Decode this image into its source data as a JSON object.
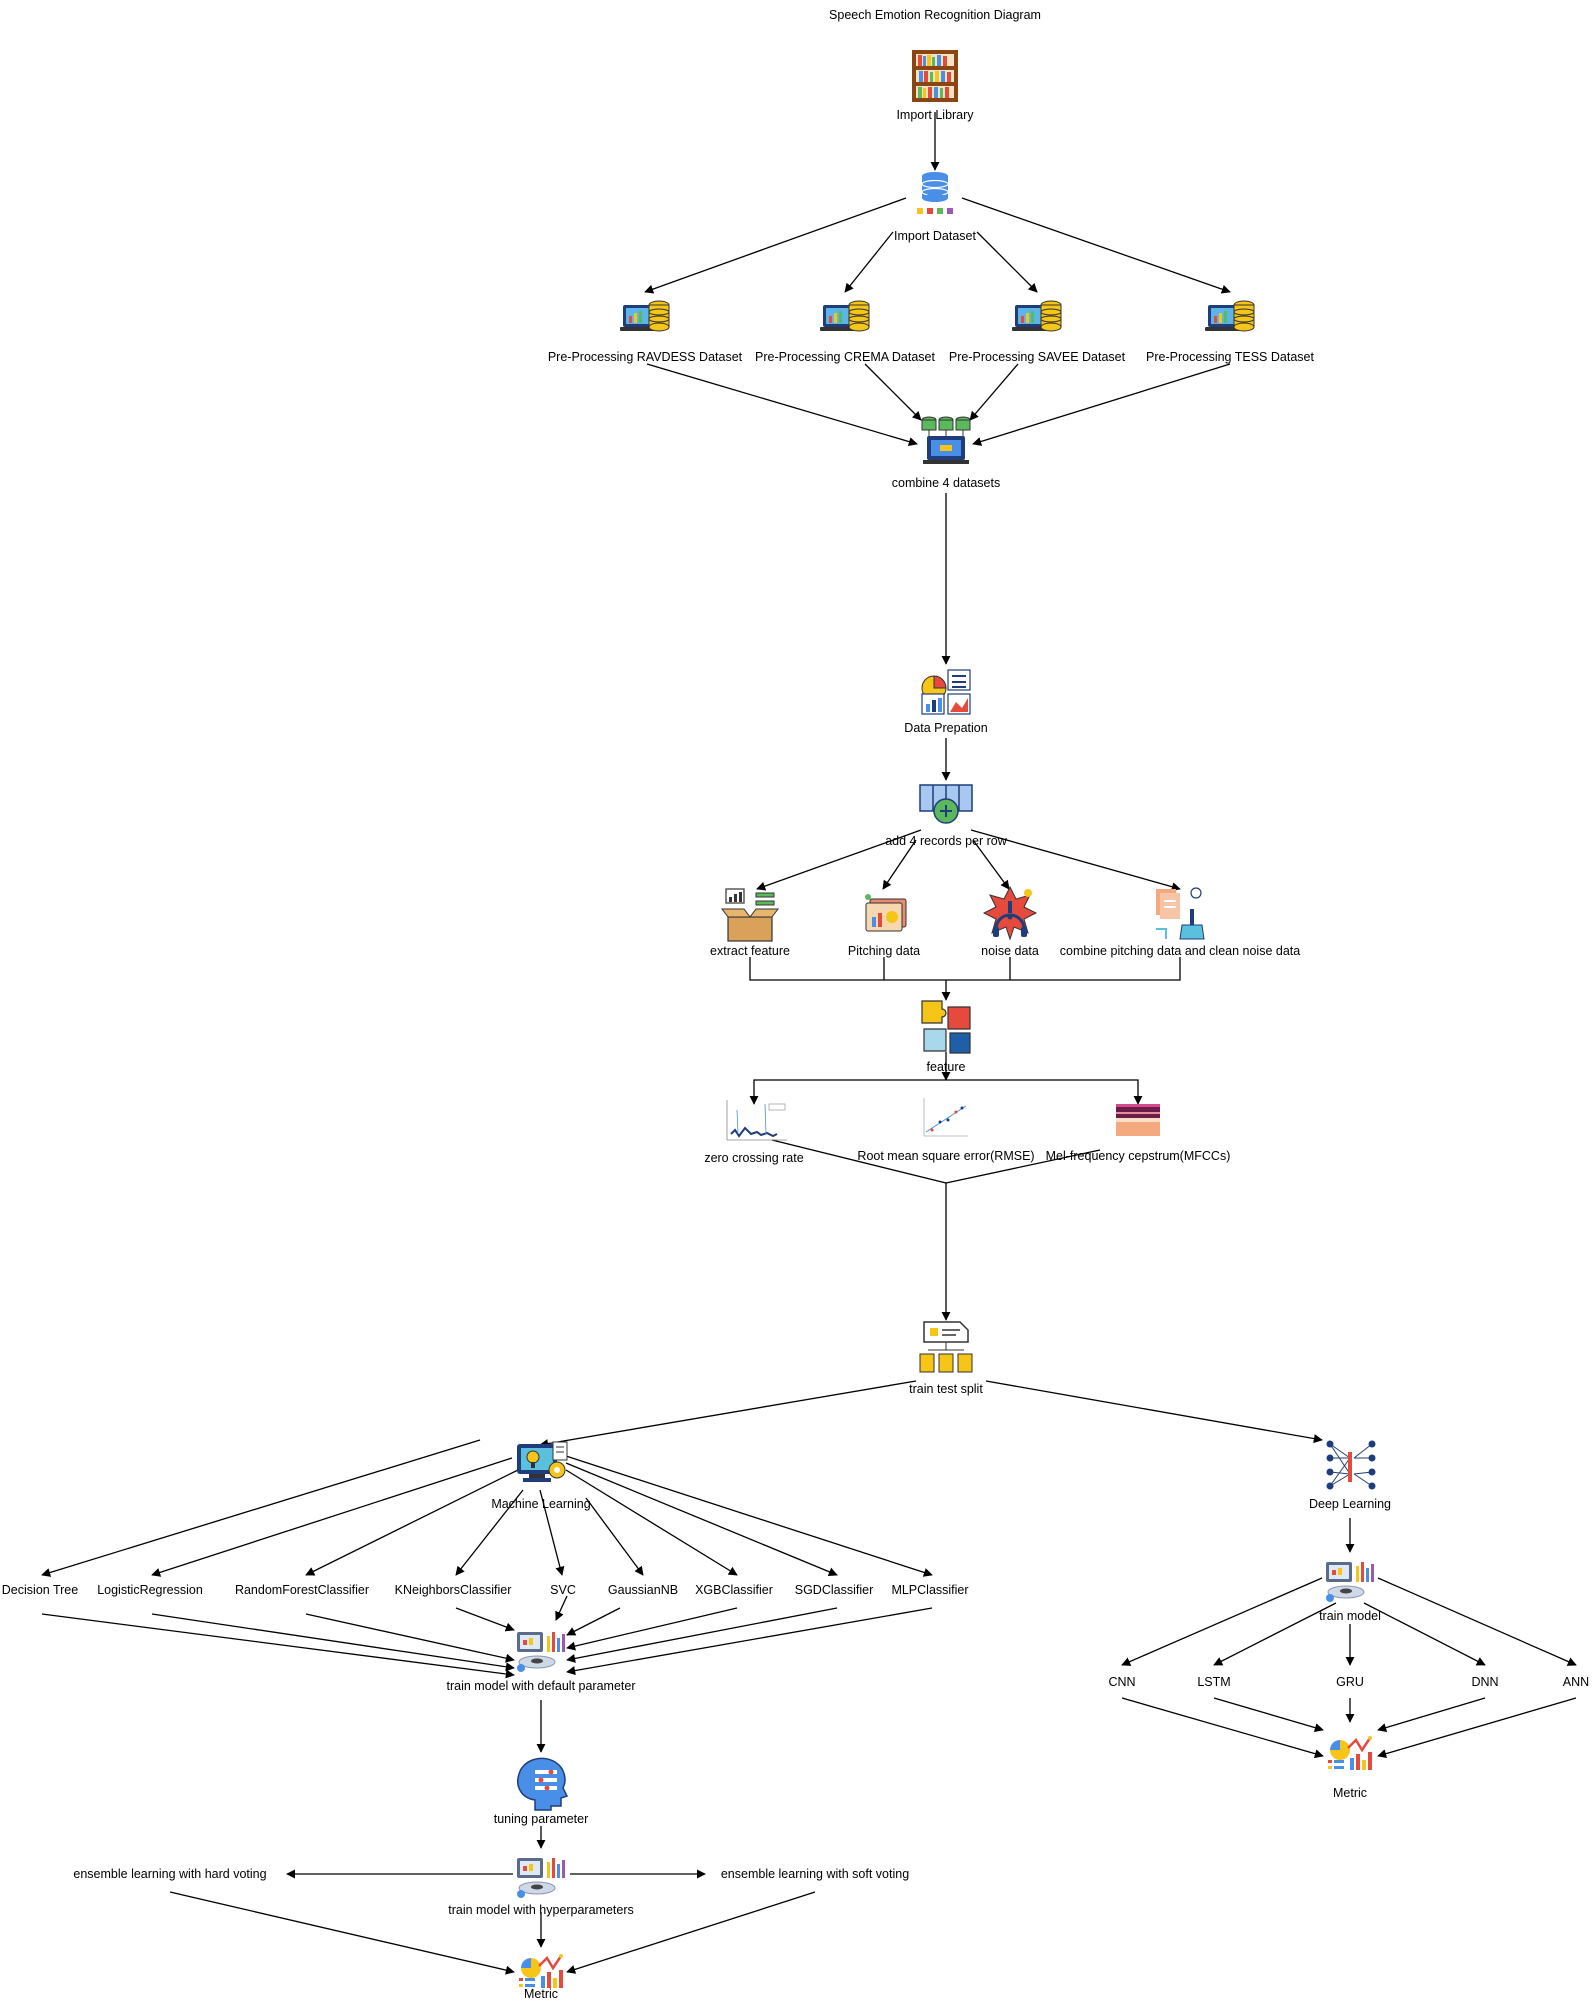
{
  "title": "Speech Emotion Recognition Diagram",
  "nodes": {
    "import_library": "Import Library",
    "import_dataset": "Import Dataset",
    "pp_ravdess": "Pre-Processing RAVDESS Dataset",
    "pp_crema": "Pre-Processing CREMA Dataset",
    "pp_savee": "Pre-Processing SAVEE Dataset",
    "pp_tess": "Pre-Processing TESS Dataset",
    "combine": "combine 4 datasets",
    "data_prep": "Data Prepation",
    "add_records": "add 4 records per row",
    "extract_feature": "extract feature",
    "pitching": "Pitching data",
    "noise": "noise data",
    "combine_pitch_noise": "combine pitching data and clean noise data",
    "feature": "feature",
    "zcr": "zero crossing rate",
    "rmse": "Root mean square error(RMSE)",
    "mfcc": "Mel-frequency cepstrum(MFCCs)",
    "split": "train test split",
    "ml": "Machine Learning",
    "dl": "Deep Learning",
    "dt": "Decision Tree",
    "lr": "LogisticRegression",
    "rf": "RandomForestClassifier",
    "knn": "KNeighborsClassifier",
    "svc": "SVC",
    "gnb": "GaussianNB",
    "xgb": "XGBClassifier",
    "sgd": "SGDClassifier",
    "mlp": "MLPClassifier",
    "train_default": "train model with default parameter",
    "tuning": "tuning parameter",
    "hard": "ensemble learning with hard voting",
    "train_hyper": "train model with hyperparameters",
    "soft": "ensemble learning with soft voting",
    "metric_ml": "Metric",
    "train_dl": "train model",
    "cnn": "CNN",
    "lstm": "LSTM",
    "gru": "GRU",
    "dnn": "DNN",
    "ann": "ANN",
    "metric_dl": "Metric"
  },
  "icons": {
    "import_library": "bookshelf-icon",
    "import_dataset": "database-icon",
    "preprocessing": "laptop-database-icon",
    "combine": "combine-datasets-icon",
    "data_prep": "chart-report-icon",
    "add_records": "add-row-icon",
    "extract_feature": "feature-box-icon",
    "pitching": "pitch-chart-icon",
    "noise": "noise-icon",
    "combine_pitch_noise": "clean-document-icon",
    "feature": "puzzle-icon",
    "zcr": "zcr-plot-icon",
    "rmse": "rmse-plot-icon",
    "mfcc": "spectrogram-icon",
    "split": "split-files-icon",
    "ml": "machine-learning-icon",
    "dl": "neural-network-icon",
    "train": "training-workstation-icon",
    "tuning": "head-settings-icon",
    "metric": "metric-charts-icon"
  },
  "colors": {
    "edge": "#000000",
    "db_blue": "#4a8fe7",
    "gold": "#f5c518",
    "green": "#5cb85c",
    "red": "#e64a3c",
    "navy": "#1f3d7a"
  }
}
